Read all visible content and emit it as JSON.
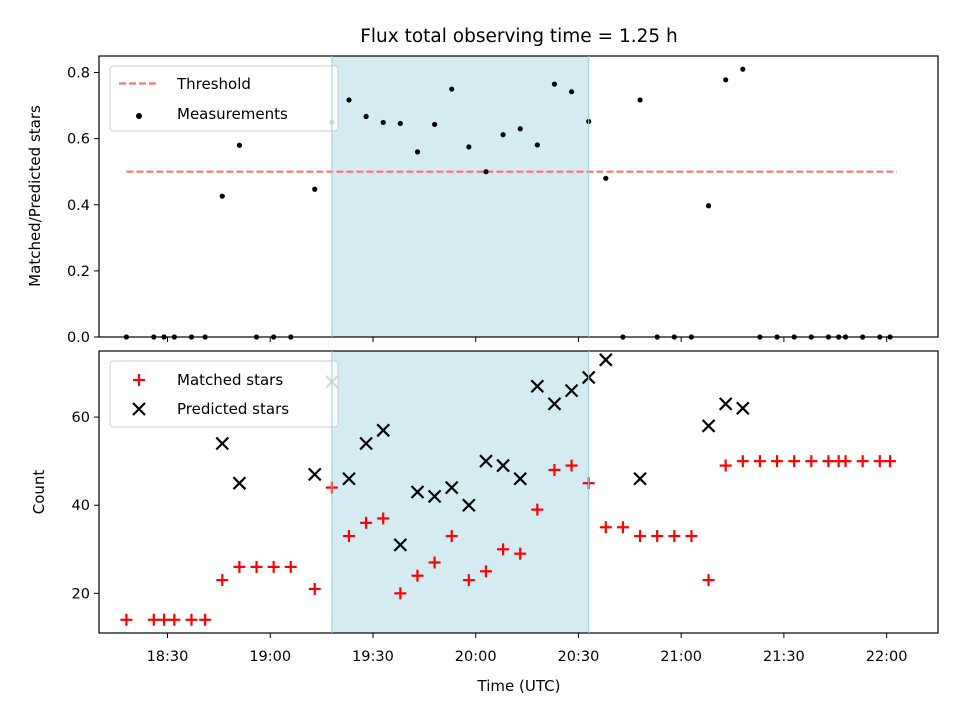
{
  "chart_data": {
    "title": "Flux total observing time = 1.25 h",
    "x_axis": {
      "label": "Time (UTC)",
      "range": [
        "18:10",
        "22:15"
      ],
      "ticks": [
        "18:30",
        "19:00",
        "19:30",
        "20:00",
        "20:30",
        "21:00",
        "21:30",
        "22:00"
      ]
    },
    "shaded_interval": {
      "start": "19:18",
      "end": "20:33",
      "color": "#add8e6"
    },
    "panels": [
      {
        "type": "scatter",
        "ylabel": "Matched/Predicted stars",
        "ylim": [
          0,
          0.85
        ],
        "yticks": [
          "0.0",
          "0.2",
          "0.4",
          "0.6",
          "0.8"
        ],
        "grid": false,
        "legend": "top-left",
        "threshold": {
          "name": "Threshold",
          "value": 0.5,
          "x_range": [
            "18:18",
            "22:03"
          ],
          "color": "#ff7070",
          "style": "dashed"
        },
        "series": [
          {
            "name": "Measurements",
            "color": "#000000",
            "marker": "dot",
            "x": [
              "18:18",
              "18:26",
              "18:29",
              "18:32",
              "18:37",
              "18:41",
              "18:46",
              "18:51",
              "18:56",
              "19:01",
              "19:06",
              "19:13",
              "19:18",
              "19:23",
              "19:28",
              "19:33",
              "19:38",
              "19:43",
              "19:48",
              "19:53",
              "19:58",
              "20:03",
              "20:08",
              "20:13",
              "20:18",
              "20:23",
              "20:28",
              "20:33",
              "20:38",
              "20:43",
              "20:48",
              "20:53",
              "20:58",
              "21:03",
              "21:08",
              "21:13",
              "21:18",
              "21:23",
              "21:28",
              "21:33",
              "21:38",
              "21:43",
              "21:46",
              "21:48",
              "21:53",
              "21:58",
              "22:01"
            ],
            "y": [
              0.0,
              0.0,
              0.0,
              0.0,
              0.0,
              0.0,
              0.426,
              0.58,
              0.0,
              0.0,
              0.0,
              0.447,
              0.65,
              0.717,
              0.667,
              0.649,
              0.646,
              0.56,
              0.643,
              0.75,
              0.575,
              0.5,
              0.612,
              0.63,
              0.581,
              0.765,
              0.742,
              0.652,
              0.48,
              0.0,
              0.717,
              0.0,
              0.0,
              0.0,
              0.397,
              0.778,
              0.81,
              0.0,
              0.0,
              0.0,
              0.0,
              0.0,
              0.0,
              0.0,
              0.0,
              0.0,
              0.0
            ]
          }
        ]
      },
      {
        "type": "scatter",
        "ylabel": "Count",
        "ylim": [
          11,
          75
        ],
        "yticks": [
          "20",
          "40",
          "60"
        ],
        "grid": false,
        "legend": "top-left",
        "series": [
          {
            "name": "Matched stars",
            "color": "#ff0000",
            "marker": "plus",
            "x": [
              "18:18",
              "18:26",
              "18:29",
              "18:32",
              "18:37",
              "18:41",
              "18:46",
              "18:51",
              "18:56",
              "19:01",
              "19:06",
              "19:13",
              "19:18",
              "19:23",
              "19:28",
              "19:33",
              "19:38",
              "19:43",
              "19:48",
              "19:53",
              "19:58",
              "20:03",
              "20:08",
              "20:13",
              "20:18",
              "20:23",
              "20:28",
              "20:33",
              "20:38",
              "20:43",
              "20:48",
              "20:53",
              "20:58",
              "21:03",
              "21:08",
              "21:13",
              "21:18",
              "21:23",
              "21:28",
              "21:33",
              "21:38",
              "21:43",
              "21:46",
              "21:48",
              "21:53",
              "21:58",
              "22:01"
            ],
            "y": [
              14,
              14,
              14,
              14,
              14,
              14,
              23,
              26,
              26,
              26,
              26,
              21,
              44,
              33,
              36,
              37,
              20,
              24,
              27,
              33,
              23,
              25,
              30,
              29,
              39,
              48,
              49,
              45,
              35,
              35,
              33,
              33,
              33,
              33,
              23,
              49,
              50,
              50,
              50,
              50,
              50,
              50,
              50,
              50,
              50,
              50,
              50
            ]
          },
          {
            "name": "Predicted stars",
            "color": "#000000",
            "marker": "x",
            "x": [
              "18:46",
              "18:51",
              "19:13",
              "19:18",
              "19:23",
              "19:28",
              "19:33",
              "19:38",
              "19:43",
              "19:48",
              "19:53",
              "19:58",
              "20:03",
              "20:08",
              "20:13",
              "20:18",
              "20:23",
              "20:28",
              "20:33",
              "20:38",
              "20:48",
              "21:08",
              "21:13",
              "21:18"
            ],
            "y": [
              54,
              45,
              47,
              68,
              46,
              54,
              57,
              31,
              43,
              42,
              44,
              40,
              50,
              49,
              46,
              67,
              63,
              66,
              69,
              73,
              46,
              58,
              63,
              62
            ]
          }
        ]
      }
    ]
  }
}
